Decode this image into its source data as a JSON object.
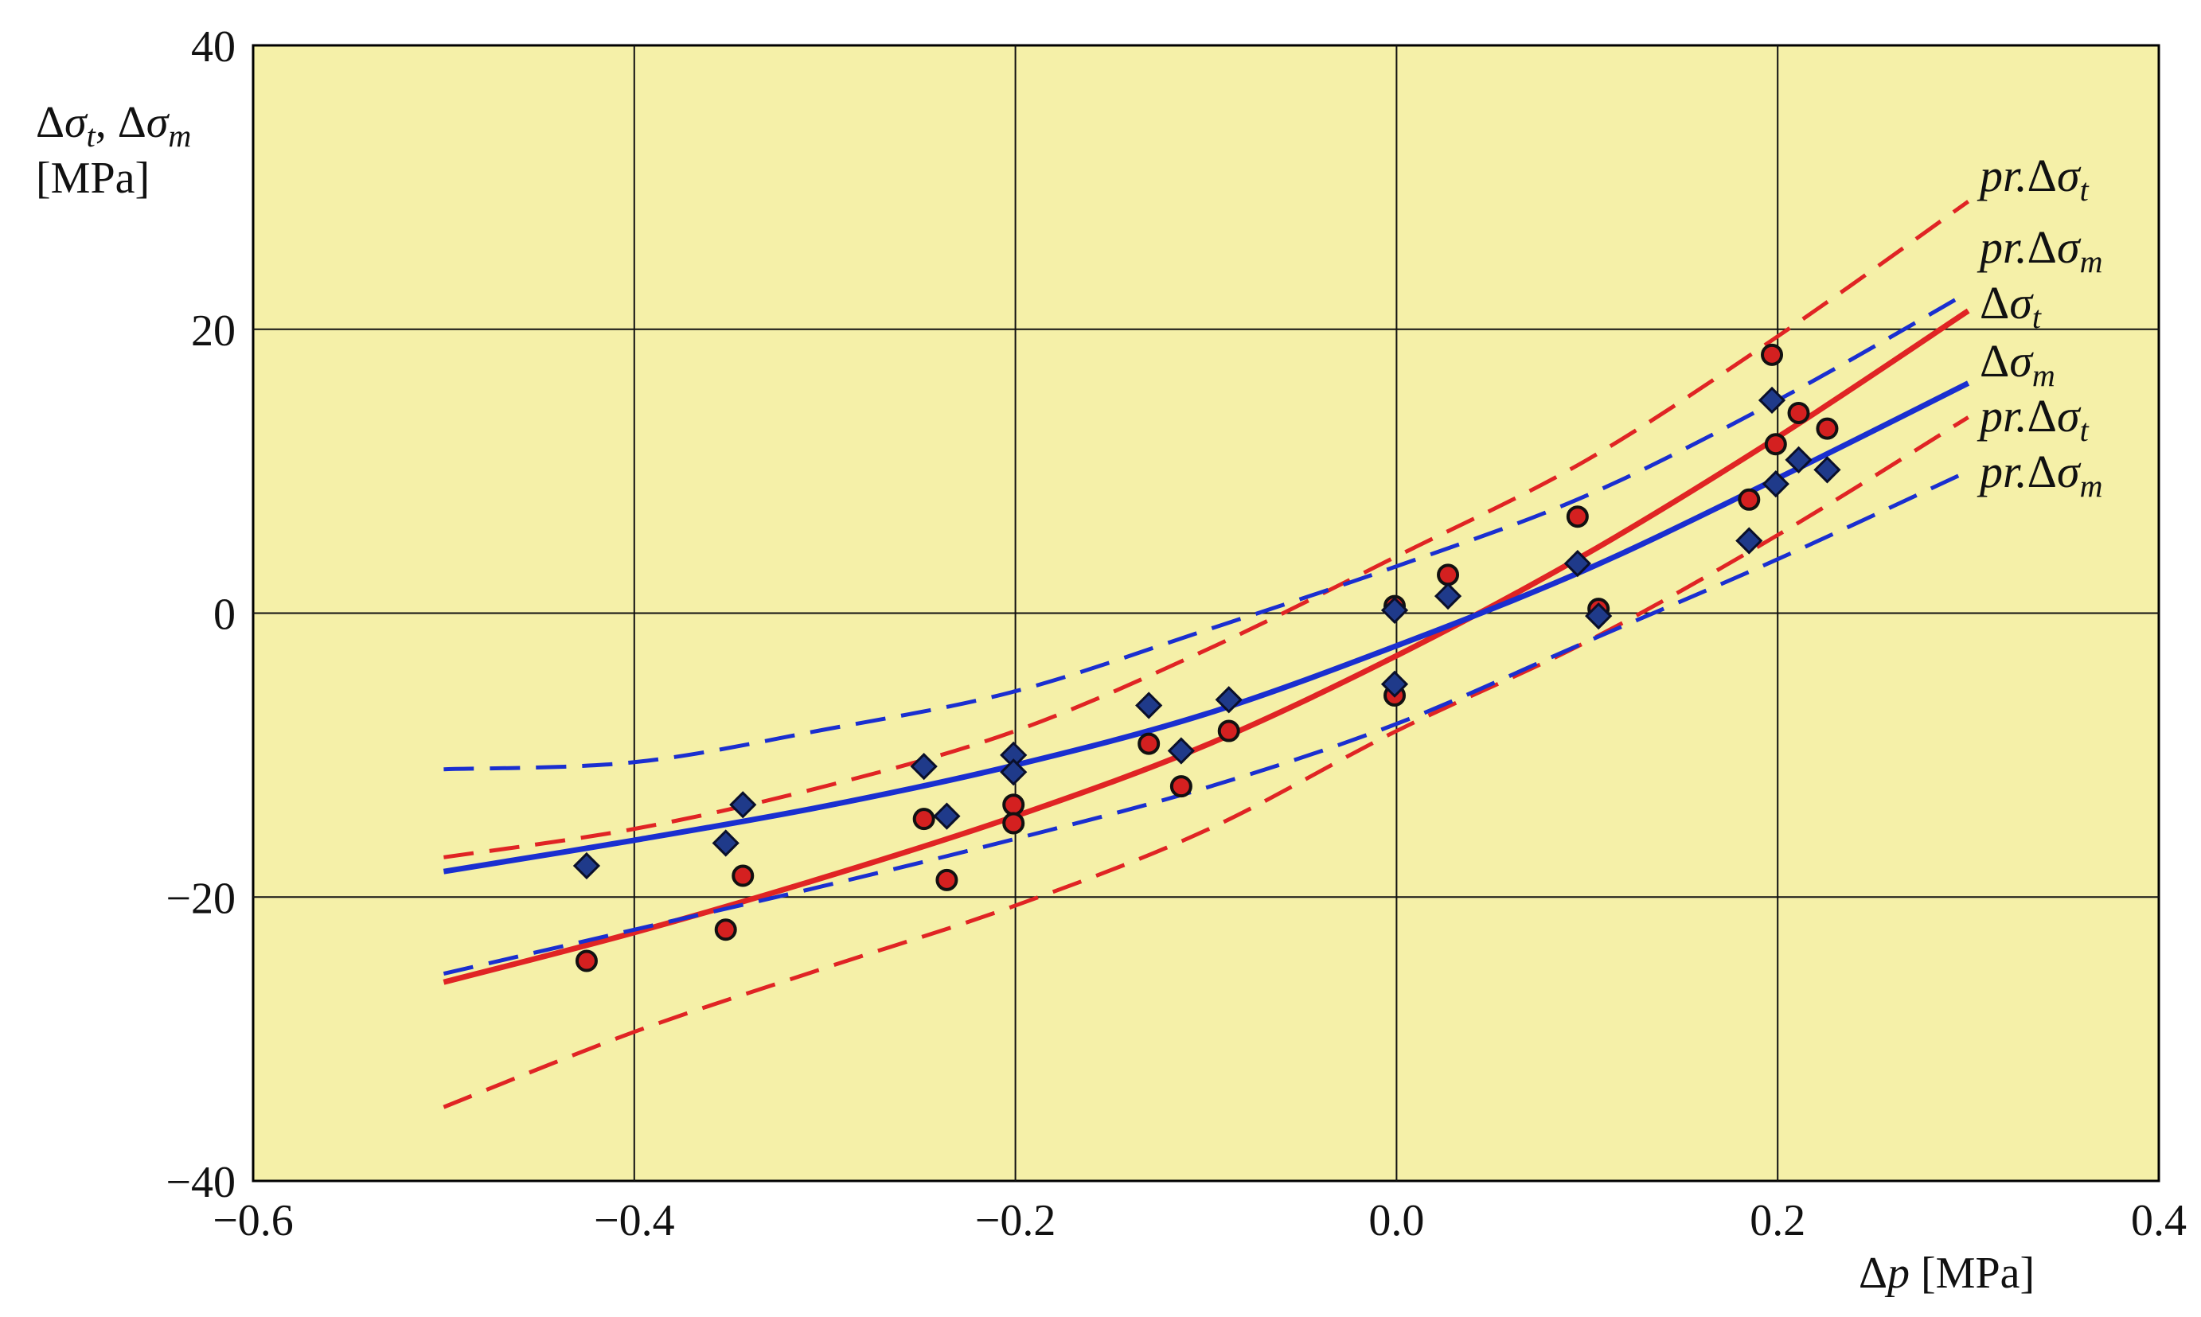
{
  "chart_data": {
    "type": "scatter",
    "title": "",
    "xlabel": "Δp [MPa]",
    "ylabel": "Δσt, Δσm",
    "ylabel_unit": "[MPa]",
    "xlim": [
      -0.6,
      0.4
    ],
    "ylim": [
      -40,
      40
    ],
    "x_ticks": [
      -0.6,
      -0.4,
      -0.2,
      0.0,
      0.2,
      0.4
    ],
    "x_tick_labels": [
      "−0.6",
      "−0.4",
      "−0.2",
      "0.0",
      "0.2",
      "0.4"
    ],
    "y_ticks": [
      -40,
      -20,
      0,
      20,
      40
    ],
    "y_tick_labels": [
      "−40",
      "−20",
      "0",
      "20",
      "40"
    ],
    "grid": true,
    "plot_background": "#f5f0a8",
    "series": [
      {
        "name": "Δσt",
        "kind": "points",
        "marker": "circle",
        "color": "#d42020",
        "points": [
          [
            -0.425,
            -24.5
          ],
          [
            -0.352,
            -22.3
          ],
          [
            -0.343,
            -18.5
          ],
          [
            -0.248,
            -14.5
          ],
          [
            -0.236,
            -18.8
          ],
          [
            -0.201,
            -13.5
          ],
          [
            -0.201,
            -14.8
          ],
          [
            -0.13,
            -9.2
          ],
          [
            -0.113,
            -12.2
          ],
          [
            -0.088,
            -8.3
          ],
          [
            -0.001,
            0.5
          ],
          [
            -0.001,
            -5.8
          ],
          [
            0.027,
            2.7
          ],
          [
            0.095,
            6.8
          ],
          [
            0.106,
            0.3
          ],
          [
            0.185,
            8.0
          ],
          [
            0.197,
            18.2
          ],
          [
            0.199,
            11.9
          ],
          [
            0.211,
            14.1
          ],
          [
            0.226,
            13.0
          ]
        ]
      },
      {
        "name": "Δσm",
        "kind": "points",
        "marker": "diamond",
        "color": "#1f3a8a",
        "points": [
          [
            -0.425,
            -17.8
          ],
          [
            -0.352,
            -16.2
          ],
          [
            -0.343,
            -13.5
          ],
          [
            -0.248,
            -10.8
          ],
          [
            -0.236,
            -14.3
          ],
          [
            -0.201,
            -10.0
          ],
          [
            -0.201,
            -11.2
          ],
          [
            -0.13,
            -6.5
          ],
          [
            -0.113,
            -9.7
          ],
          [
            -0.088,
            -6.1
          ],
          [
            -0.001,
            0.2
          ],
          [
            -0.001,
            -5.0
          ],
          [
            0.027,
            1.2
          ],
          [
            0.095,
            3.5
          ],
          [
            0.106,
            -0.2
          ],
          [
            0.185,
            5.1
          ],
          [
            0.197,
            15.0
          ],
          [
            0.199,
            9.1
          ],
          [
            0.211,
            10.8
          ],
          [
            0.226,
            10.1
          ]
        ]
      },
      {
        "name": "Δσt",
        "kind": "curve",
        "color": "#e02424",
        "dash": "solid",
        "points": [
          [
            -0.5,
            -26.0
          ],
          [
            -0.4,
            -22.5
          ],
          [
            -0.3,
            -18.6
          ],
          [
            -0.2,
            -14.3
          ],
          [
            -0.1,
            -9.3
          ],
          [
            0.0,
            -3.0
          ],
          [
            0.1,
            4.2
          ],
          [
            0.2,
            12.4
          ],
          [
            0.3,
            21.3
          ]
        ]
      },
      {
        "name": "Δσm",
        "kind": "curve",
        "color": "#1a2fd0",
        "dash": "solid",
        "points": [
          [
            -0.5,
            -18.2
          ],
          [
            -0.4,
            -16.0
          ],
          [
            -0.3,
            -13.6
          ],
          [
            -0.2,
            -10.7
          ],
          [
            -0.1,
            -7.1
          ],
          [
            0.0,
            -2.3
          ],
          [
            0.1,
            3.1
          ],
          [
            0.2,
            9.5
          ],
          [
            0.3,
            16.2
          ]
        ]
      },
      {
        "name": "pr.Δσt",
        "kind": "curve",
        "color": "#e02424",
        "dash": "dashed",
        "points": [
          [
            -0.5,
            -17.2
          ],
          [
            -0.4,
            -15.2
          ],
          [
            -0.3,
            -12.2
          ],
          [
            -0.2,
            -8.3
          ],
          [
            -0.1,
            -2.6
          ],
          [
            0.0,
            4.0
          ],
          [
            0.1,
            10.8
          ],
          [
            0.2,
            19.5
          ],
          [
            0.3,
            29.0
          ]
        ]
      },
      {
        "name": "pr.Δσm",
        "kind": "curve",
        "color": "#1a2fd0",
        "dash": "dashed",
        "points": [
          [
            -0.5,
            -11.0
          ],
          [
            -0.4,
            -10.5
          ],
          [
            -0.3,
            -8.2
          ],
          [
            -0.2,
            -5.5
          ],
          [
            -0.1,
            -1.2
          ],
          [
            0.0,
            3.3
          ],
          [
            0.1,
            8.3
          ],
          [
            0.2,
            15.0
          ],
          [
            0.3,
            22.6
          ]
        ]
      },
      {
        "name": "pr.Δσt",
        "kind": "curve",
        "color": "#e02424",
        "dash": "dashed",
        "points": [
          [
            -0.5,
            -34.8
          ],
          [
            -0.4,
            -29.5
          ],
          [
            -0.3,
            -25.0
          ],
          [
            -0.2,
            -20.6
          ],
          [
            -0.1,
            -15.3
          ],
          [
            0.0,
            -8.3
          ],
          [
            0.1,
            -2.0
          ],
          [
            0.2,
            5.5
          ],
          [
            0.3,
            13.8
          ]
        ]
      },
      {
        "name": "pr.Δσm",
        "kind": "curve",
        "color": "#1a2fd0",
        "dash": "dashed",
        "points": [
          [
            -0.5,
            -25.4
          ],
          [
            -0.4,
            -22.3
          ],
          [
            -0.3,
            -19.2
          ],
          [
            -0.2,
            -15.9
          ],
          [
            -0.1,
            -12.3
          ],
          [
            0.0,
            -7.8
          ],
          [
            0.1,
            -2.0
          ],
          [
            0.2,
            3.8
          ],
          [
            0.3,
            10.0
          ]
        ]
      }
    ],
    "legend_labels": [
      {
        "prefix": "pr.Δ",
        "sym": "σ",
        "sub": "t",
        "color_series": 4
      },
      {
        "prefix": "pr.Δ",
        "sym": "σ",
        "sub": "m",
        "color_series": 5
      },
      {
        "prefix": "Δ",
        "sym": "σ",
        "sub": "t",
        "color_series": 2
      },
      {
        "prefix": "Δ",
        "sym": "σ",
        "sub": "m",
        "color_series": 3
      },
      {
        "prefix": "pr.Δ",
        "sym": "σ",
        "sub": "t",
        "color_series": 6
      },
      {
        "prefix": "pr.Δ",
        "sym": "σ",
        "sub": "m",
        "color_series": 7
      }
    ]
  }
}
